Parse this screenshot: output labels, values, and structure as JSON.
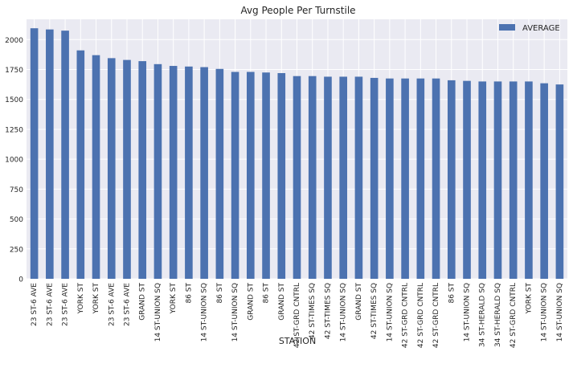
{
  "chart_data": {
    "type": "bar",
    "title": "Avg People Per Turnstile",
    "xlabel": "STATION",
    "ylabel": "",
    "ylim": [
      0,
      2170
    ],
    "yticks": [
      0,
      250,
      500,
      750,
      1000,
      1250,
      1500,
      1750,
      2000
    ],
    "grid": true,
    "legend_position": "top-right",
    "bar_color": "#4c72b0",
    "background_color": "#eaeaf2",
    "categories": [
      "23 ST-6 AVE",
      "23 ST-6 AVE",
      "23 ST-6 AVE",
      "YORK ST",
      "YORK ST",
      "23 ST-6 AVE",
      "23 ST-6 AVE",
      "GRAND ST",
      "14 ST-UNION SQ",
      "YORK ST",
      "86 ST",
      "14 ST-UNION SQ",
      "86 ST",
      "14 ST-UNION SQ",
      "GRAND ST",
      "86 ST",
      "GRAND ST",
      "42 ST-GRD CNTRL",
      "42 ST-TIMES SQ",
      "42 ST-TIMES SQ",
      "14 ST-UNION SQ",
      "GRAND ST",
      "42 ST-TIMES SQ",
      "14 ST-UNION SQ",
      "42 ST-GRD CNTRL",
      "42 ST-GRD CNTRL",
      "42 ST-GRD CNTRL",
      "86 ST",
      "14 ST-UNION SQ",
      "34 ST-HERALD SQ",
      "34 ST-HERALD SQ",
      "42 ST-GRD CNTRL",
      "YORK ST",
      "14 ST-UNION SQ",
      "14 ST-UNION SQ"
    ],
    "series": [
      {
        "name": "AVERAGE",
        "values": [
          2095,
          2085,
          2075,
          1910,
          1870,
          1845,
          1830,
          1820,
          1795,
          1780,
          1775,
          1770,
          1755,
          1730,
          1730,
          1725,
          1720,
          1695,
          1695,
          1690,
          1690,
          1690,
          1680,
          1675,
          1675,
          1675,
          1675,
          1660,
          1655,
          1650,
          1650,
          1650,
          1650,
          1635,
          1625
        ]
      }
    ]
  }
}
